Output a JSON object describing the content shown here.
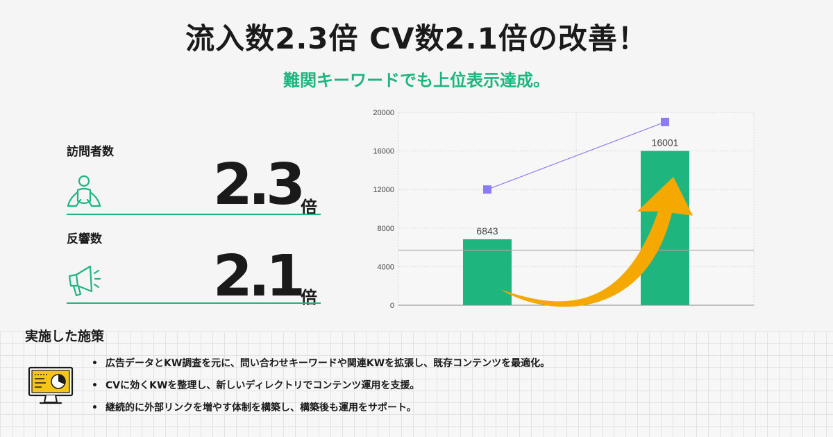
{
  "headline": "流入数2.3倍 CV数2.1倍の改善！",
  "subheadline": "難関キーワードでも上位表示達成。",
  "metrics": [
    {
      "label": "訪問者数",
      "value": "2.3",
      "unit": "倍",
      "icon": "person-icon"
    },
    {
      "label": "反響数",
      "value": "2.1",
      "unit": "倍",
      "icon": "megaphone-icon"
    }
  ],
  "colors": {
    "accent": "#1eb57e",
    "line": "#8a7cf5",
    "arrow": "#f5a800",
    "text": "#1a1a1a"
  },
  "chart_data": {
    "type": "bar",
    "categories": [
      "",
      ""
    ],
    "series": [
      {
        "type": "bar",
        "values": [
          6843,
          16001
        ],
        "color": "#1eb57e"
      },
      {
        "type": "line",
        "values": [
          12000,
          19000
        ],
        "color": "#8a7cf5"
      }
    ],
    "data_labels": [
      "6843",
      "16001"
    ],
    "ylim": [
      0,
      20000
    ],
    "yticks": [
      0,
      4000,
      8000,
      12000,
      16000,
      20000
    ],
    "reference_line": 5700,
    "grid": true,
    "annotation": "rising-arrow-icon"
  },
  "section": {
    "title": "実施した施策",
    "icon": "monitor-chart-icon",
    "items": [
      "広告データとKW調査を元に、問い合わせキーワードや関連KWを拡張し、既存コンテンツを最適化。",
      "CVに効くKWを整理し、新しいディレクトリでコンテンツ運用を支援。",
      "継続的に外部リンクを増やす体制を構築し、構築後も運用をサポート。"
    ]
  }
}
